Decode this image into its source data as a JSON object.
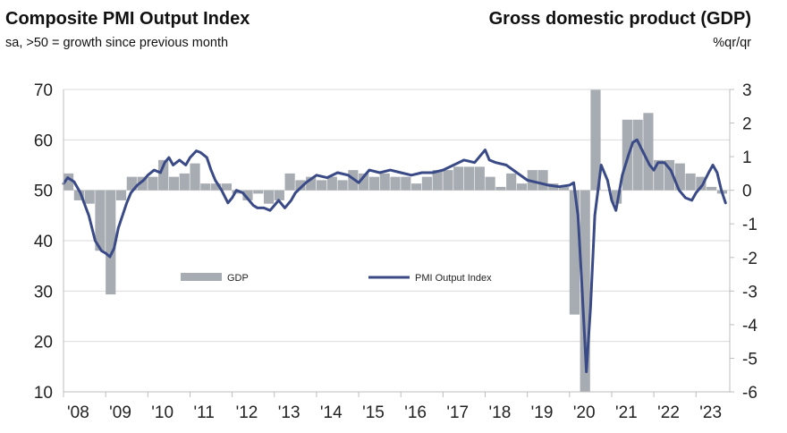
{
  "header": {
    "left_title": "Composite PMI Output Index",
    "left_subtitle": "sa, >50 = growth  since previous  month",
    "right_title": "Gross domestic product (GDP)",
    "right_subtitle": "%qr/qr"
  },
  "colors": {
    "bar": "#a7acb2",
    "line": "#3a4a86",
    "grid": "#d9d9d9",
    "axis": "#bdbdbd"
  },
  "chart_data": {
    "type": "bar+line",
    "legend": {
      "placement": "center",
      "gdp_label": "GDP",
      "pmi_label": "PMI Output Index"
    },
    "left_axis": {
      "ylim": [
        10,
        70
      ],
      "ticks": [
        "70",
        "60",
        "50",
        "40",
        "30",
        "20",
        "10"
      ]
    },
    "right_axis": {
      "ylim": [
        -6,
        3
      ],
      "ticks": [
        "3",
        "2",
        "1",
        "0",
        "-1",
        "-2",
        "-3",
        "-4",
        "-5",
        "-6"
      ]
    },
    "x_axis": {
      "xlim": [
        2008.0,
        2023.8
      ],
      "tick_labels": [
        "'08",
        "'09",
        "'10",
        "'11",
        "'12",
        "'13",
        "'14",
        "'15",
        "'16",
        "'17",
        "'18",
        "'19",
        "'20",
        "'21",
        "'22",
        "'23"
      ]
    },
    "gdp_series": {
      "name": "GDP",
      "x": [
        2008.0,
        2008.25,
        2008.5,
        2008.75,
        2009.0,
        2009.25,
        2009.5,
        2009.75,
        2010.0,
        2010.25,
        2010.5,
        2010.75,
        2011.0,
        2011.25,
        2011.5,
        2011.75,
        2012.0,
        2012.25,
        2012.5,
        2012.75,
        2013.0,
        2013.25,
        2013.5,
        2013.75,
        2014.0,
        2014.25,
        2014.5,
        2014.75,
        2015.0,
        2015.25,
        2015.5,
        2015.75,
        2016.0,
        2016.25,
        2016.5,
        2016.75,
        2017.0,
        2017.25,
        2017.5,
        2017.75,
        2018.0,
        2018.25,
        2018.5,
        2018.75,
        2019.0,
        2019.25,
        2019.5,
        2019.75,
        2020.0,
        2020.25,
        2020.5,
        2020.75,
        2021.0,
        2021.25,
        2021.5,
        2021.75,
        2022.0,
        2022.25,
        2022.5,
        2022.75,
        2023.0,
        2023.25,
        2023.5
      ],
      "values": [
        0.5,
        -0.3,
        -0.4,
        -1.8,
        -3.1,
        -0.3,
        0.4,
        0.4,
        0.4,
        0.9,
        0.4,
        0.5,
        0.8,
        0.2,
        0.2,
        0.2,
        -0.1,
        -0.3,
        -0.1,
        -0.4,
        -0.3,
        0.5,
        0.3,
        0.4,
        0.3,
        0.4,
        0.3,
        0.6,
        0.5,
        0.4,
        0.5,
        0.4,
        0.4,
        0.2,
        0.4,
        0.6,
        0.6,
        0.7,
        0.7,
        0.7,
        0.4,
        0.1,
        0.5,
        0.2,
        0.6,
        0.6,
        0.2,
        0.1,
        -3.7,
        -11.6,
        12.5,
        0.0,
        -0.4,
        2.1,
        2.1,
        2.3,
        0.9,
        0.9,
        0.8,
        0.5,
        0.4,
        0.1,
        -0.1
      ]
    },
    "pmi_series": {
      "name": "PMI Output Index",
      "x": [
        2008.0,
        2008.1,
        2008.25,
        2008.4,
        2008.5,
        2008.6,
        2008.75,
        2008.9,
        2009.0,
        2009.1,
        2009.2,
        2009.3,
        2009.4,
        2009.5,
        2009.6,
        2009.75,
        2009.9,
        2010.0,
        2010.15,
        2010.3,
        2010.4,
        2010.5,
        2010.6,
        2010.75,
        2010.9,
        2011.0,
        2011.15,
        2011.25,
        2011.4,
        2011.5,
        2011.6,
        2011.75,
        2011.9,
        2012.0,
        2012.1,
        2012.25,
        2012.4,
        2012.5,
        2012.6,
        2012.75,
        2012.9,
        2013.0,
        2013.1,
        2013.25,
        2013.4,
        2013.5,
        2013.75,
        2014.0,
        2014.25,
        2014.5,
        2014.75,
        2015.0,
        2015.25,
        2015.5,
        2015.75,
        2016.0,
        2016.25,
        2016.5,
        2016.75,
        2017.0,
        2017.25,
        2017.5,
        2017.75,
        2017.9,
        2018.0,
        2018.1,
        2018.25,
        2018.5,
        2018.75,
        2019.0,
        2019.25,
        2019.5,
        2019.75,
        2020.0,
        2020.1,
        2020.2,
        2020.3,
        2020.4,
        2020.5,
        2020.6,
        2020.75,
        2020.9,
        2021.0,
        2021.1,
        2021.25,
        2021.4,
        2021.5,
        2021.6,
        2021.75,
        2021.9,
        2022.0,
        2022.1,
        2022.25,
        2022.4,
        2022.5,
        2022.6,
        2022.75,
        2022.9,
        2023.0,
        2023.15,
        2023.3,
        2023.4,
        2023.5,
        2023.6,
        2023.7
      ],
      "values": [
        51.3,
        52.5,
        51.7,
        49.5,
        47.2,
        45.0,
        40.0,
        38.0,
        37.5,
        36.8,
        38.5,
        42.5,
        45.0,
        47.5,
        49.5,
        51.0,
        52.0,
        53.0,
        54.0,
        53.5,
        55.5,
        56.5,
        55.0,
        56.0,
        55.0,
        56.5,
        57.8,
        57.5,
        56.5,
        54.0,
        52.0,
        50.0,
        47.5,
        48.5,
        50.0,
        49.5,
        48.0,
        47.0,
        46.5,
        46.5,
        46.0,
        47.0,
        48.0,
        46.5,
        48.0,
        49.5,
        51.5,
        53.0,
        52.5,
        53.5,
        53.0,
        51.5,
        54.0,
        53.5,
        54.0,
        53.5,
        53.0,
        53.5,
        53.5,
        54.0,
        55.0,
        56.0,
        55.5,
        57.0,
        58.0,
        56.0,
        55.5,
        55.0,
        53.5,
        52.0,
        51.5,
        51.0,
        50.7,
        51.0,
        51.5,
        45.0,
        30.0,
        14.0,
        27.0,
        45.0,
        55.0,
        52.0,
        48.0,
        46.0,
        53.0,
        57.0,
        59.5,
        60.0,
        57.5,
        55.0,
        54.0,
        55.5,
        55.5,
        54.0,
        52.0,
        50.0,
        48.5,
        48.0,
        49.5,
        51.0,
        53.5,
        55.0,
        53.5,
        50.0,
        47.5
      ]
    }
  }
}
